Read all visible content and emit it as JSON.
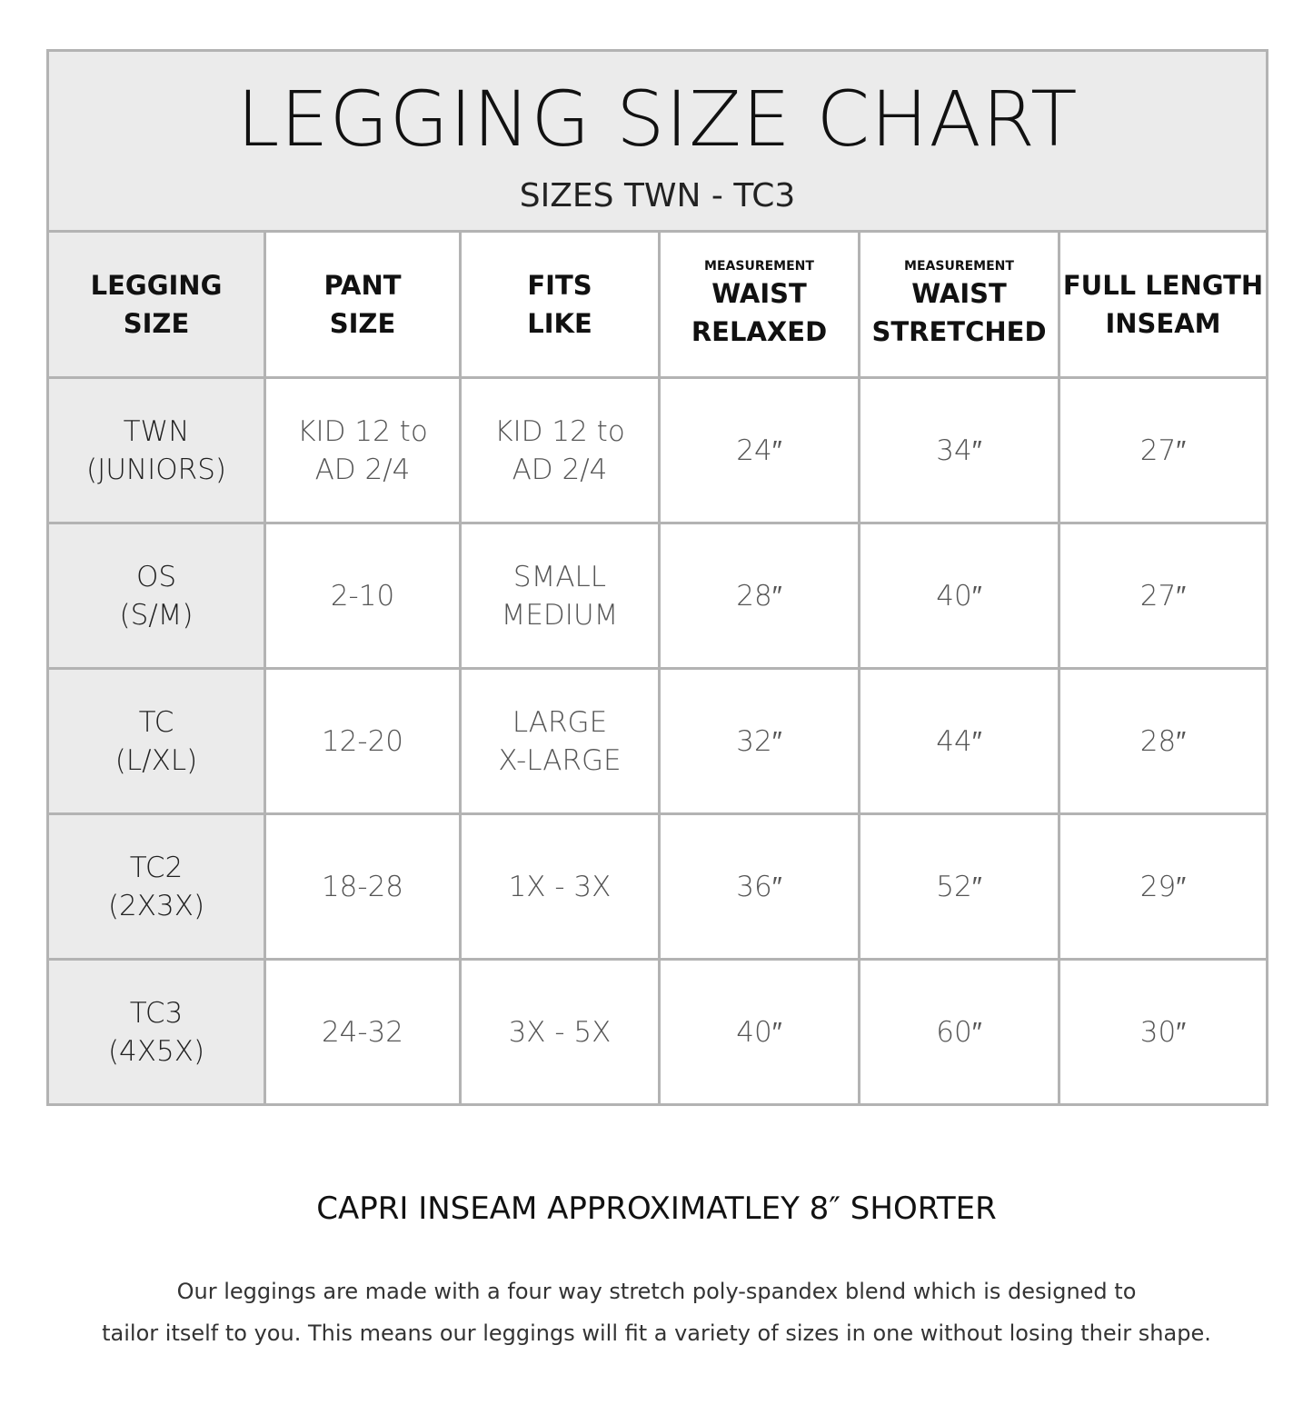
{
  "title": "LEGGING SIZE CHART",
  "subtitle": "SIZES TWN - TC3",
  "headers": [
    {
      "small": "",
      "l1": "LEGGING",
      "l2": "SIZE"
    },
    {
      "small": "",
      "l1": "PANT",
      "l2": "SIZE"
    },
    {
      "small": "",
      "l1": "FITS",
      "l2": "LIKE"
    },
    {
      "small": "MEASUREMENT",
      "l1": "WAIST",
      "l2": "RELAXED"
    },
    {
      "small": "MEASUREMENT",
      "l1": "WAIST",
      "l2": "STRETCHED"
    },
    {
      "small": "",
      "l1": "FULL LENGTH",
      "l2": "INSEAM"
    }
  ],
  "rows": [
    {
      "size": [
        "TWN",
        "(JUNIORS)"
      ],
      "pant": [
        "KID 12 to",
        "AD 2/4"
      ],
      "fits": [
        "KID 12 to",
        "AD 2/4"
      ],
      "relaxed": "24″",
      "stretched": "34″",
      "inseam": "27″"
    },
    {
      "size": [
        "OS",
        "(S/M)"
      ],
      "pant": [
        "2-10",
        ""
      ],
      "fits": [
        "SMALL",
        "MEDIUM"
      ],
      "relaxed": "28″",
      "stretched": "40″",
      "inseam": "27″"
    },
    {
      "size": [
        "TC",
        "(L/XL)"
      ],
      "pant": [
        "12-20",
        ""
      ],
      "fits": [
        "LARGE",
        "X-LARGE"
      ],
      "relaxed": "32″",
      "stretched": "44″",
      "inseam": "28″"
    },
    {
      "size": [
        "TC2",
        "(2X3X)"
      ],
      "pant": [
        "18-28",
        ""
      ],
      "fits": [
        "1X - 3X",
        ""
      ],
      "relaxed": "36″",
      "stretched": "52″",
      "inseam": "29″"
    },
    {
      "size": [
        "TC3",
        "(4X5X)"
      ],
      "pant": [
        "24-32",
        ""
      ],
      "fits": [
        "3X - 5X",
        ""
      ],
      "relaxed": "40″",
      "stretched": "60″",
      "inseam": "30″"
    }
  ],
  "note": "CAPRI INSEAM APPROXIMATLEY 8″ SHORTER",
  "description": [
    "Our leggings are made with a four way stretch poly-spandex blend which is designed to",
    "tailor itself to you. This means our leggings will fit a variety of sizes in one without losing their shape."
  ]
}
